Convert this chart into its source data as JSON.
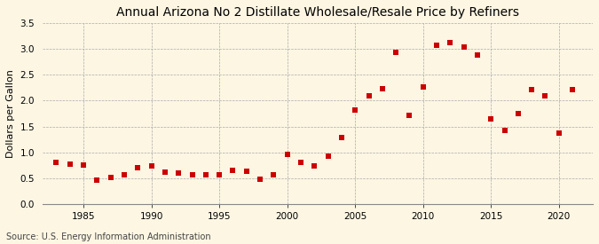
{
  "title": "Annual Arizona No 2 Distillate Wholesale/Resale Price by Refiners",
  "ylabel": "Dollars per Gallon",
  "source": "Source: U.S. Energy Information Administration",
  "years": [
    1983,
    1984,
    1985,
    1986,
    1987,
    1988,
    1989,
    1990,
    1991,
    1992,
    1993,
    1994,
    1995,
    1996,
    1997,
    1998,
    1999,
    2000,
    2001,
    2002,
    2003,
    2004,
    2005,
    2006,
    2007,
    2008,
    2009,
    2010,
    2011,
    2012,
    2013,
    2014,
    2015,
    2016,
    2017,
    2018,
    2019,
    2020,
    2021
  ],
  "values": [
    0.8,
    0.77,
    0.76,
    0.46,
    0.51,
    0.57,
    0.7,
    0.73,
    0.61,
    0.6,
    0.57,
    0.57,
    0.57,
    0.65,
    0.64,
    0.47,
    0.57,
    0.96,
    0.8,
    0.74,
    0.93,
    1.29,
    1.82,
    2.09,
    2.24,
    2.93,
    1.71,
    2.27,
    3.08,
    3.13,
    3.04,
    2.88,
    1.65,
    1.42,
    1.75,
    2.21,
    2.1,
    1.38,
    2.22
  ],
  "marker_color": "#cc0000",
  "marker_size": 18,
  "background_color": "#fdf6e3",
  "grid_color": "#aaaaaa",
  "ylim": [
    0,
    3.5
  ],
  "yticks": [
    0.0,
    0.5,
    1.0,
    1.5,
    2.0,
    2.5,
    3.0,
    3.5
  ],
  "xlim": [
    1982,
    2022.5
  ],
  "xticks": [
    1985,
    1990,
    1995,
    2000,
    2005,
    2010,
    2015,
    2020
  ],
  "title_fontsize": 10,
  "label_fontsize": 8,
  "tick_fontsize": 7.5,
  "source_fontsize": 7
}
